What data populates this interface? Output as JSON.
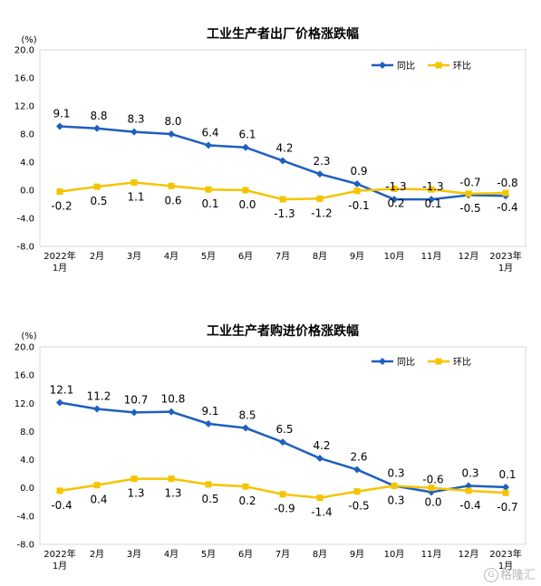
{
  "chart_data": [
    {
      "type": "line",
      "title": "工业生产者出厂价格涨跌幅",
      "unit": "(%)",
      "categories": [
        [
          "2022年",
          "1月"
        ],
        [
          "2月"
        ],
        [
          "3月"
        ],
        [
          "4月"
        ],
        [
          "5月"
        ],
        [
          "6月"
        ],
        [
          "7月"
        ],
        [
          "8月"
        ],
        [
          "9月"
        ],
        [
          "10月"
        ],
        [
          "11月"
        ],
        [
          "12月"
        ],
        [
          "2023年",
          "1月"
        ]
      ],
      "ylim": [
        -8.0,
        20.0
      ],
      "yticks": [
        "20.0",
        "16.0",
        "12.0",
        "8.0",
        "4.0",
        "0.0",
        "-4.0",
        "-8.0"
      ],
      "legend_position": "top-right",
      "series": [
        {
          "name": "同比",
          "color": "#1f5fbf",
          "values": [
            9.1,
            8.8,
            8.3,
            8.0,
            6.4,
            6.1,
            4.2,
            2.3,
            0.9,
            -1.3,
            -1.3,
            -0.7,
            -0.8
          ],
          "labels": [
            "9.1",
            "8.8",
            "8.3",
            "8.0",
            "6.4",
            "6.1",
            "4.2",
            "2.3",
            "0.9",
            "-1.3",
            "-1.3",
            "-0.7",
            "-0.8"
          ]
        },
        {
          "name": "环比",
          "color": "#f5c400",
          "values": [
            -0.2,
            0.5,
            1.1,
            0.6,
            0.1,
            0.0,
            -1.3,
            -1.2,
            -0.1,
            0.2,
            0.1,
            -0.5,
            -0.4
          ],
          "labels": [
            "-0.2",
            "0.5",
            "1.1",
            "0.6",
            "0.1",
            "0.0",
            "-1.3",
            "-1.2",
            "-0.1",
            "0.2",
            "0.1",
            "-0.5",
            "-0.4"
          ]
        }
      ]
    },
    {
      "type": "line",
      "title": "工业生产者购进价格涨跌幅",
      "unit": "(%)",
      "categories": [
        [
          "2022年",
          "1月"
        ],
        [
          "2月"
        ],
        [
          "3月"
        ],
        [
          "4月"
        ],
        [
          "5月"
        ],
        [
          "6月"
        ],
        [
          "7月"
        ],
        [
          "8月"
        ],
        [
          "9月"
        ],
        [
          "10月"
        ],
        [
          "11月"
        ],
        [
          "12月"
        ],
        [
          "2023年",
          "1月"
        ]
      ],
      "ylim": [
        -8.0,
        20.0
      ],
      "yticks": [
        "20.0",
        "16.0",
        "12.0",
        "8.0",
        "4.0",
        "0.0",
        "-4.0",
        "-8.0"
      ],
      "legend_position": "top-right",
      "series": [
        {
          "name": "同比",
          "color": "#1f5fbf",
          "values": [
            12.1,
            11.2,
            10.7,
            10.8,
            9.1,
            8.5,
            6.5,
            4.2,
            2.6,
            0.3,
            -0.6,
            0.3,
            0.1
          ],
          "labels": [
            "12.1",
            "11.2",
            "10.7",
            "10.8",
            "9.1",
            "8.5",
            "6.5",
            "4.2",
            "2.6",
            "0.3",
            "-0.6",
            "0.3",
            "0.1"
          ]
        },
        {
          "name": "环比",
          "color": "#f5c400",
          "values": [
            -0.4,
            0.4,
            1.3,
            1.3,
            0.5,
            0.2,
            -0.9,
            -1.4,
            -0.5,
            0.3,
            0.0,
            -0.4,
            -0.7
          ],
          "labels": [
            "-0.4",
            "0.4",
            "1.3",
            "1.3",
            "0.5",
            "0.2",
            "-0.9",
            "-1.4",
            "-0.5",
            "0.3",
            "0.0",
            "-0.4",
            "-0.7"
          ]
        }
      ]
    }
  ],
  "watermark": {
    "text": "格隆汇",
    "logo": "G"
  }
}
